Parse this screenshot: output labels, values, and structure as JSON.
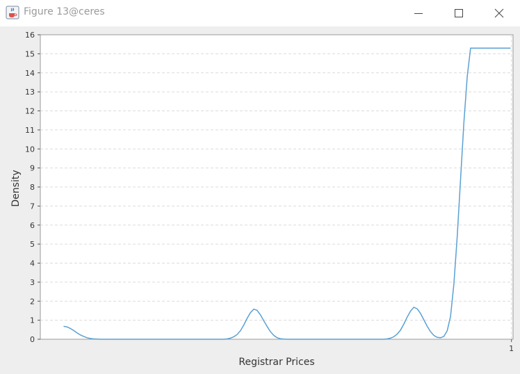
{
  "window": {
    "title": "Figure 13@ceres",
    "icon": "java-coffee-cup-icon"
  },
  "colors": {
    "line": "#5aa0d2",
    "grid": "#dcdcdc",
    "axis": "#9a9a9a",
    "figure_bg": "#eeeeee",
    "plot_bg": "#ffffff"
  },
  "chart_data": {
    "type": "line",
    "title": "",
    "xlabel": "Registrar Prices",
    "ylabel": "Density",
    "ylim": [
      0,
      16
    ],
    "yticks": [
      0,
      1,
      2,
      3,
      4,
      5,
      6,
      7,
      8,
      9,
      10,
      11,
      12,
      13,
      14,
      15,
      16
    ],
    "xticks": [
      1
    ],
    "xlim": [
      -0.052,
      1.0036
    ],
    "grid": "dashed",
    "series": [
      {
        "name": "density",
        "x": [
          0.0,
          0.0075,
          0.0149,
          0.0224,
          0.0298,
          0.0373,
          0.0447,
          0.0522,
          0.0596,
          0.0671,
          0.0745,
          0.082,
          0.0894,
          0.0969,
          0.1043,
          0.1118,
          0.1937,
          0.2757,
          0.3576,
          0.3651,
          0.3725,
          0.38,
          0.3874,
          0.3949,
          0.4023,
          0.4098,
          0.4172,
          0.4247,
          0.4321,
          0.4396,
          0.447,
          0.4545,
          0.4619,
          0.4694,
          0.4768,
          0.4843,
          0.4917,
          0.4992,
          0.5066,
          0.5141,
          0.596,
          0.678,
          0.715,
          0.7225,
          0.7299,
          0.7374,
          0.7448,
          0.7523,
          0.7597,
          0.7672,
          0.7746,
          0.7821,
          0.7895,
          0.797,
          0.8044,
          0.8119,
          0.8193,
          0.8268,
          0.8342,
          0.8417,
          0.8491,
          0.8566,
          0.864,
          0.8715,
          0.8789,
          0.8864,
          0.8938,
          0.9013,
          0.9087,
          0.9162,
          0.9236,
          0.9311,
          0.9385,
          0.946,
          0.9534,
          0.9609,
          0.9683,
          0.9758,
          0.9832,
          0.9907,
          0.9981
        ],
        "y": [
          0.68,
          0.65,
          0.57,
          0.46,
          0.34,
          0.23,
          0.15,
          0.08,
          0.04,
          0.02,
          0.01,
          0.0,
          0.0,
          0.0,
          0.0,
          0.0,
          0.0,
          0.0,
          0.0,
          0.02,
          0.06,
          0.13,
          0.25,
          0.45,
          0.75,
          1.1,
          1.4,
          1.58,
          1.52,
          1.28,
          0.97,
          0.67,
          0.4,
          0.2,
          0.08,
          0.03,
          0.01,
          0.0,
          0.0,
          0.0,
          0.0,
          0.0,
          0.0,
          0.02,
          0.06,
          0.13,
          0.27,
          0.48,
          0.8,
          1.16,
          1.48,
          1.68,
          1.6,
          1.36,
          1.02,
          0.68,
          0.4,
          0.2,
          0.1,
          0.08,
          0.15,
          0.45,
          1.2,
          2.9,
          5.4,
          8.4,
          11.4,
          13.8,
          15.3,
          15.3,
          15.3,
          15.3,
          15.3,
          15.3,
          15.3,
          15.3,
          15.3,
          15.3,
          15.3,
          15.3,
          15.3
        ]
      }
    ]
  }
}
